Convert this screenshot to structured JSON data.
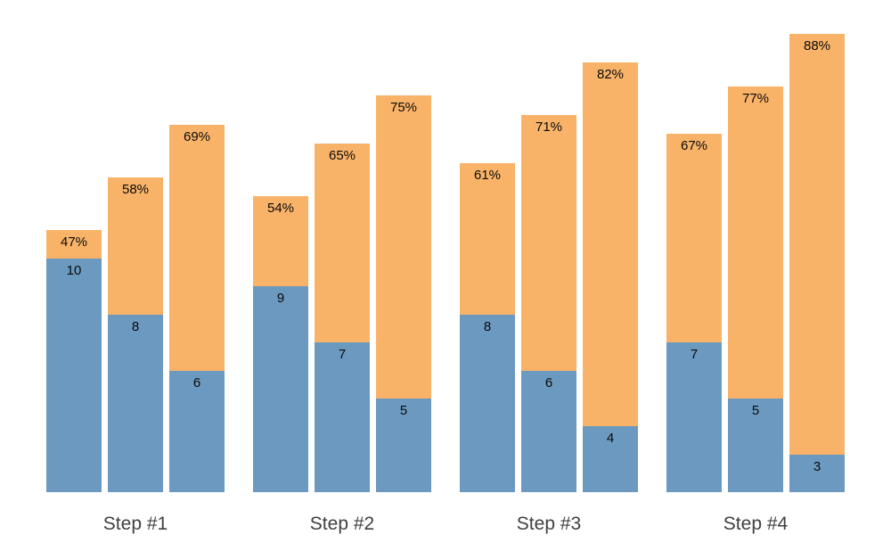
{
  "chart_data": {
    "type": "bar",
    "subtype": "grouped-stacked-bars-no-axes",
    "title": "",
    "xlabel": "",
    "ylabel": "",
    "categories": [
      "Step #1",
      "Step #2",
      "Step #3",
      "Step #4"
    ],
    "groups": [
      {
        "category": "Step #1",
        "bars": [
          {
            "bottom_value": 10,
            "bottom_label": "10",
            "top_pct": 47,
            "top_label": "47%"
          },
          {
            "bottom_value": 8,
            "bottom_label": "8",
            "top_pct": 58,
            "top_label": "58%"
          },
          {
            "bottom_value": 6,
            "bottom_label": "6",
            "top_pct": 69,
            "top_label": "69%"
          }
        ]
      },
      {
        "category": "Step #2",
        "bars": [
          {
            "bottom_value": 9,
            "bottom_label": "9",
            "top_pct": 54,
            "top_label": "54%"
          },
          {
            "bottom_value": 7,
            "bottom_label": "7",
            "top_pct": 65,
            "top_label": "65%"
          },
          {
            "bottom_value": 5,
            "bottom_label": "5",
            "top_pct": 75,
            "top_label": "75%"
          }
        ]
      },
      {
        "category": "Step #3",
        "bars": [
          {
            "bottom_value": 8,
            "bottom_label": "8",
            "top_pct": 61,
            "top_label": "61%"
          },
          {
            "bottom_value": 6,
            "bottom_label": "6",
            "top_pct": 71,
            "top_label": "71%"
          },
          {
            "bottom_value": 4,
            "bottom_label": "4",
            "top_pct": 82,
            "top_label": "82%"
          }
        ]
      },
      {
        "category": "Step #4",
        "bars": [
          {
            "bottom_value": 7,
            "bottom_label": "7",
            "top_pct": 67,
            "top_label": "67%"
          },
          {
            "bottom_value": 5,
            "bottom_label": "5",
            "top_pct": 77,
            "top_label": "77%"
          },
          {
            "bottom_value": 3,
            "bottom_label": "3",
            "top_pct": 88,
            "top_label": "88%"
          }
        ]
      }
    ],
    "colors": {
      "bottom_segment": "#6C99BF",
      "top_segment": "#F9B369",
      "value_label": "#0a0a0a",
      "pct_label": "#0a0a0a",
      "category_label": "#404040",
      "background": "#ffffff"
    },
    "layout_hints": {
      "legend": false,
      "grid": false,
      "axes_visible": false,
      "labels_inside_bars_at_top": true
    }
  }
}
